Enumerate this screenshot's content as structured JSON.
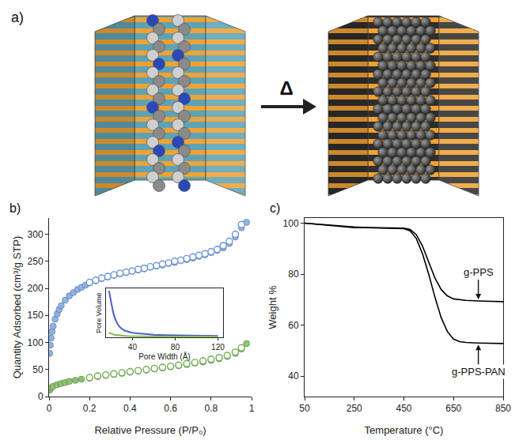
{
  "diagram": {
    "panel": "a)",
    "arrow_label": "Δ"
  },
  "chart_data": [
    {
      "panel": "b)",
      "type": "scatter",
      "x_label": "Relative Pressure (P/P₀)",
      "y_label": "Quantity Adsorbed (cm³/g STP)",
      "xlim": [
        0,
        1
      ],
      "xticks": [
        0,
        0.2,
        0.4,
        0.6,
        0.8,
        1
      ],
      "ylim": [
        0,
        330
      ],
      "yticks": [
        0,
        50,
        100,
        150,
        200,
        250,
        300
      ],
      "series": [
        {
          "color": "#8fb3e6",
          "marker": "circle",
          "x": [
            0.003,
            0.006,
            0.01,
            0.015,
            0.02,
            0.03,
            0.04,
            0.05,
            0.06,
            0.08,
            0.1,
            0.12,
            0.14,
            0.16,
            0.18,
            0.2,
            0.23,
            0.26,
            0.29,
            0.32,
            0.35,
            0.38,
            0.41,
            0.44,
            0.47,
            0.5,
            0.53,
            0.56,
            0.59,
            0.62,
            0.65,
            0.68,
            0.71,
            0.74,
            0.77,
            0.8,
            0.83,
            0.86,
            0.89,
            0.92,
            0.95,
            0.975
          ],
          "values": [
            80,
            95,
            108,
            120,
            130,
            143,
            153,
            161,
            168,
            178,
            186,
            192,
            198,
            202,
            206,
            210,
            214,
            218,
            221,
            224,
            227,
            229,
            232,
            234,
            236,
            239,
            241,
            243,
            246,
            248,
            251,
            253,
            256,
            259,
            262,
            266,
            270,
            275,
            283,
            295,
            312,
            322
          ]
        },
        {
          "color": "#6f95d6",
          "marker": "open_circle",
          "x": [
            0.95,
            0.92,
            0.89,
            0.86,
            0.83,
            0.8,
            0.77,
            0.74,
            0.71,
            0.68,
            0.65,
            0.62,
            0.59,
            0.56,
            0.53,
            0.5,
            0.47,
            0.44,
            0.41,
            0.38,
            0.35,
            0.32,
            0.29,
            0.26,
            0.23,
            0.2
          ],
          "values": [
            318,
            300,
            287,
            279,
            272,
            268,
            264,
            261,
            258,
            255,
            252,
            250,
            247,
            245,
            242,
            240,
            237,
            235,
            232,
            230,
            228,
            225,
            222,
            219,
            215,
            211
          ]
        },
        {
          "color": "#8cc46c",
          "marker": "circle",
          "x": [
            0.003,
            0.01,
            0.02,
            0.04,
            0.06,
            0.08,
            0.1,
            0.13,
            0.16,
            0.2,
            0.24,
            0.28,
            0.32,
            0.36,
            0.4,
            0.44,
            0.48,
            0.52,
            0.56,
            0.6,
            0.64,
            0.68,
            0.72,
            0.76,
            0.8,
            0.84,
            0.88,
            0.92,
            0.95,
            0.975
          ],
          "values": [
            12,
            16,
            19,
            22,
            24,
            26,
            28,
            30,
            32,
            34,
            37,
            39,
            41,
            43,
            45,
            47,
            49,
            51,
            53,
            55,
            57,
            59,
            62,
            64,
            67,
            70,
            74,
            80,
            88,
            98
          ]
        },
        {
          "color": "#6fae4e",
          "marker": "open_circle",
          "x": [
            0.95,
            0.92,
            0.88,
            0.84,
            0.8,
            0.76,
            0.72,
            0.68,
            0.64,
            0.6,
            0.56,
            0.52,
            0.48,
            0.44,
            0.4,
            0.36,
            0.32,
            0.28,
            0.24,
            0.2
          ],
          "values": [
            90,
            82,
            76,
            72,
            69,
            66,
            63,
            61,
            58,
            56,
            54,
            52,
            50,
            48,
            46,
            44,
            42,
            40,
            38,
            35
          ]
        }
      ],
      "inset": {
        "type": "line",
        "x_label": "Pore Width (Å)",
        "y_label": "Pore Volume",
        "xlim": [
          15,
          125
        ],
        "xticks": [
          40,
          80,
          120
        ],
        "ylim": [
          0,
          1
        ],
        "tick_labels": "x",
        "series": [
          {
            "color": "#4a62c8",
            "x": [
              18,
              20,
              22,
              24,
              26,
              28,
              30,
              33,
              36,
              40,
              45,
              50,
              60,
              70,
              80,
              90,
              100,
              110,
              120
            ],
            "values": [
              0.95,
              0.72,
              0.5,
              0.36,
              0.27,
              0.21,
              0.17,
              0.13,
              0.11,
              0.09,
              0.075,
              0.065,
              0.05,
              0.042,
              0.036,
              0.032,
              0.029,
              0.027,
              0.025
            ]
          },
          {
            "color": "#7ab648",
            "x": [
              18,
              20,
              22,
              24,
              26,
              28,
              30,
              33,
              36,
              40,
              45,
              50,
              60,
              70,
              80,
              90,
              100,
              110,
              120
            ],
            "values": [
              0.09,
              0.07,
              0.055,
              0.045,
              0.038,
              0.033,
              0.029,
              0.025,
              0.022,
              0.019,
              0.017,
              0.015,
              0.013,
              0.012,
              0.011,
              0.01,
              0.01,
              0.01,
              0.01
            ]
          }
        ]
      }
    },
    {
      "panel": "c)",
      "type": "line",
      "x_label": "Temperature (°C)",
      "y_label": "Weight %",
      "xlim": [
        50,
        850
      ],
      "xticks": [
        50,
        250,
        450,
        650,
        850
      ],
      "ylim": [
        32,
        102
      ],
      "yticks": [
        40,
        60,
        80,
        100
      ],
      "series": [
        {
          "name": "g-PPS",
          "color": "#000000",
          "x": [
            50,
            100,
            150,
            200,
            250,
            300,
            350,
            400,
            450,
            475,
            500,
            525,
            550,
            575,
            600,
            625,
            650,
            700,
            750,
            800,
            850
          ],
          "values": [
            100,
            99.6,
            99.2,
            98.8,
            98.5,
            98.3,
            98.2,
            98.1,
            98,
            97.5,
            95.5,
            91,
            85,
            78.5,
            74,
            71.5,
            70.3,
            69.7,
            69.5,
            69.3,
            69.2
          ]
        },
        {
          "name": "g-PPS-PAN",
          "color": "#000000",
          "x": [
            50,
            100,
            150,
            200,
            250,
            300,
            350,
            400,
            450,
            475,
            500,
            525,
            550,
            575,
            600,
            625,
            650,
            675,
            700,
            750,
            800,
            850
          ],
          "values": [
            100,
            99.6,
            99.1,
            98.6,
            98.2,
            98.2,
            98.1,
            98,
            97.8,
            97,
            94,
            88,
            80,
            71,
            63,
            57.5,
            54.5,
            53.5,
            53.2,
            53,
            52.9,
            52.8
          ]
        }
      ]
    }
  ]
}
